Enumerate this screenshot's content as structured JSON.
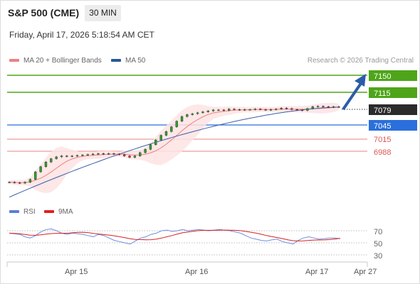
{
  "header": {
    "instrument": "S&P 500 (CME)",
    "timeframe": "30 MIN",
    "datetime": "Friday, April 17, 2026 5:18:54 AM CET"
  },
  "legend": {
    "ma20_bb": "MA 20 + Bollinger Bands",
    "ma50": "MA 50",
    "credit": "Research © 2026 Trading Central",
    "colors": {
      "ma20": "#f08080",
      "ma50": "#2b5797"
    }
  },
  "rsi_legend": {
    "rsi": "RSI",
    "ma9": "9MA",
    "colors": {
      "rsi": "#5b7fd6",
      "ma9": "#e02020"
    }
  },
  "levels": {
    "r2": "7150",
    "r1": "7115",
    "last": "7079",
    "pivot": "7045",
    "s1": "7015",
    "s2": "6988",
    "colors": {
      "resistance": "#4ea51a",
      "pivot": "#2a6fdb",
      "support": "#e05555",
      "last": "#2b2b2b"
    }
  },
  "rsi_axis": [
    "70",
    "50",
    "30"
  ],
  "x_axis": [
    "Apr 15",
    "Apr 16",
    "Apr 17",
    "Apr 27"
  ],
  "chart_data": {
    "type": "candlestick",
    "price_scale": {
      "min": 6900,
      "max": 7160
    },
    "price_series": [
      6922,
      6921,
      6920,
      6922,
      6928,
      6944,
      6955,
      6965,
      6972,
      6976,
      6978,
      6977,
      6978,
      6979,
      6980,
      6981,
      6982,
      6983,
      6982,
      6983,
      6982,
      6981,
      6978,
      6975,
      6978,
      6985,
      6992,
      7002,
      7012,
      7022,
      7030,
      7040,
      7052,
      7062,
      7066,
      7068,
      7070,
      7072,
      7074,
      7076,
      7076,
      7075,
      7078,
      7077,
      7076,
      7077,
      7077,
      7078,
      7077,
      7076,
      7077,
      7078,
      7080,
      7079,
      7077,
      7076,
      7075,
      7079,
      7083,
      7084,
      7083,
      7082,
      7083,
      7082
    ],
    "ma50_range": [
      6890,
      7082
    ],
    "rsi_series": [
      66,
      65,
      64,
      60,
      58,
      62,
      68,
      72,
      73,
      70,
      66,
      64,
      66,
      65,
      64,
      62,
      60,
      64,
      62,
      58,
      54,
      52,
      50,
      48,
      53,
      58,
      60,
      64,
      66,
      70,
      71,
      69,
      70,
      72,
      70,
      71,
      72,
      71,
      70,
      71,
      72,
      71,
      70,
      68,
      66,
      62,
      58,
      56,
      54,
      53,
      55,
      56,
      52,
      50,
      48,
      54,
      58,
      60,
      58,
      56,
      57,
      58,
      58,
      57
    ],
    "rsi_levels": [
      70,
      50,
      30
    ],
    "annotation": "projected move toward 7150"
  }
}
